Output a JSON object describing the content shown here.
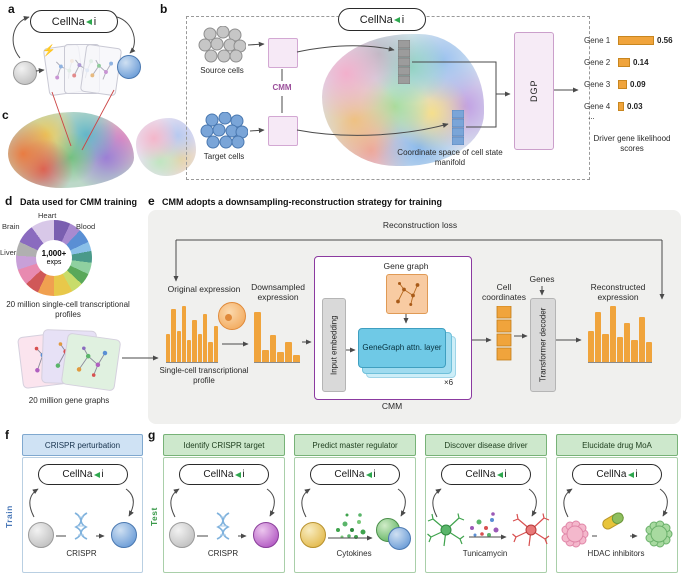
{
  "logo": {
    "pre": "CellNa",
    "post": "i"
  },
  "colors": {
    "accent_orange": "#f0a43c",
    "cmm_purple": "#8b3aa0",
    "train_blue": "#4a78b8",
    "test_green": "#3a9a4a",
    "header_blue": "#cfe2f4",
    "header_green": "#cde8cc"
  },
  "icons": {
    "logo_arrow": "navigation-arrow-icon",
    "lightning": "lightning-icon",
    "dna": "dna-helix-icon",
    "capsule": "drug-capsule-icon",
    "neuron": "neuron-icon",
    "fluffy_cell": "cell-icon"
  },
  "panel_a": {
    "label": "a"
  },
  "panel_b": {
    "label": "b",
    "source_cells": "Source cells",
    "target_cells": "Target cells",
    "cmm": "CMM",
    "coordinate_space": "Coordinate space of cell state manifold",
    "dgp": "DGP",
    "ellipsis": "...",
    "caption": "Driver gene likelihood scores"
  },
  "chart_data": {
    "type": "bar",
    "orientation": "horizontal",
    "categories": [
      "Gene 1",
      "Gene 2",
      "Gene 3",
      "Gene 4"
    ],
    "values": [
      0.56,
      0.14,
      0.09,
      0.03
    ],
    "title": "Driver gene likelihood scores",
    "xlim": [
      0,
      0.6
    ],
    "bar_color": "#f0a43c"
  },
  "panel_c": {
    "label": "c"
  },
  "panel_d": {
    "label": "d",
    "title": "Data used for CMM training",
    "donut": {
      "labels": [
        "Brain",
        "Heart",
        "Blood",
        "Liver"
      ],
      "center_value": "1,000+",
      "center_unit": "exps"
    },
    "profiles_caption": "20 million single-cell transcriptional profiles",
    "graphs_caption": "20 million gene graphs"
  },
  "panel_e": {
    "label": "e",
    "title": "CMM adopts a downsampling-reconstruction strategy for training",
    "reconstruction_loss": "Reconstruction loss",
    "original_expression": "Original expression",
    "single_cell_profile": "Single-cell transcriptional profile",
    "downsampled_expression": "Downsampled expression",
    "gene_graph": "Gene graph",
    "input_embedding": "Input embedding",
    "genegraph_attn_layer": "GeneGraph attn. layer",
    "repeat": "×6",
    "cmm": "CMM",
    "cell_coordinates": "Cell coordinates",
    "genes": "Genes",
    "transformer_decoder": "Transformer decoder",
    "reconstructed_expression": "Reconstructed expression",
    "histograms": {
      "original": [
        0.5,
        0.95,
        0.55,
        1,
        0.4,
        0.75,
        0.5,
        0.85,
        0.35,
        0.65
      ],
      "downsampled": [
        1,
        0.25,
        0.55,
        0.2,
        0.4,
        0.15
      ],
      "reconstructed": [
        0.55,
        0.9,
        0.5,
        1,
        0.45,
        0.7,
        0.4,
        0.8,
        0.35
      ]
    }
  },
  "panel_f": {
    "label": "f",
    "header": "CRISPR perturbation",
    "side_label": "Train",
    "center_label": "CRISPR"
  },
  "panel_g": {
    "label": "g",
    "side_label": "Test",
    "tasks": [
      {
        "header": "Identify CRISPR target",
        "center_label": "CRISPR"
      },
      {
        "header": "Predict master regulator",
        "center_label": "Cytokines"
      },
      {
        "header": "Discover disease driver",
        "center_label": "Tunicamycin"
      },
      {
        "header": "Elucidate drug MoA",
        "center_label": "HDAC inhibitors"
      }
    ]
  }
}
